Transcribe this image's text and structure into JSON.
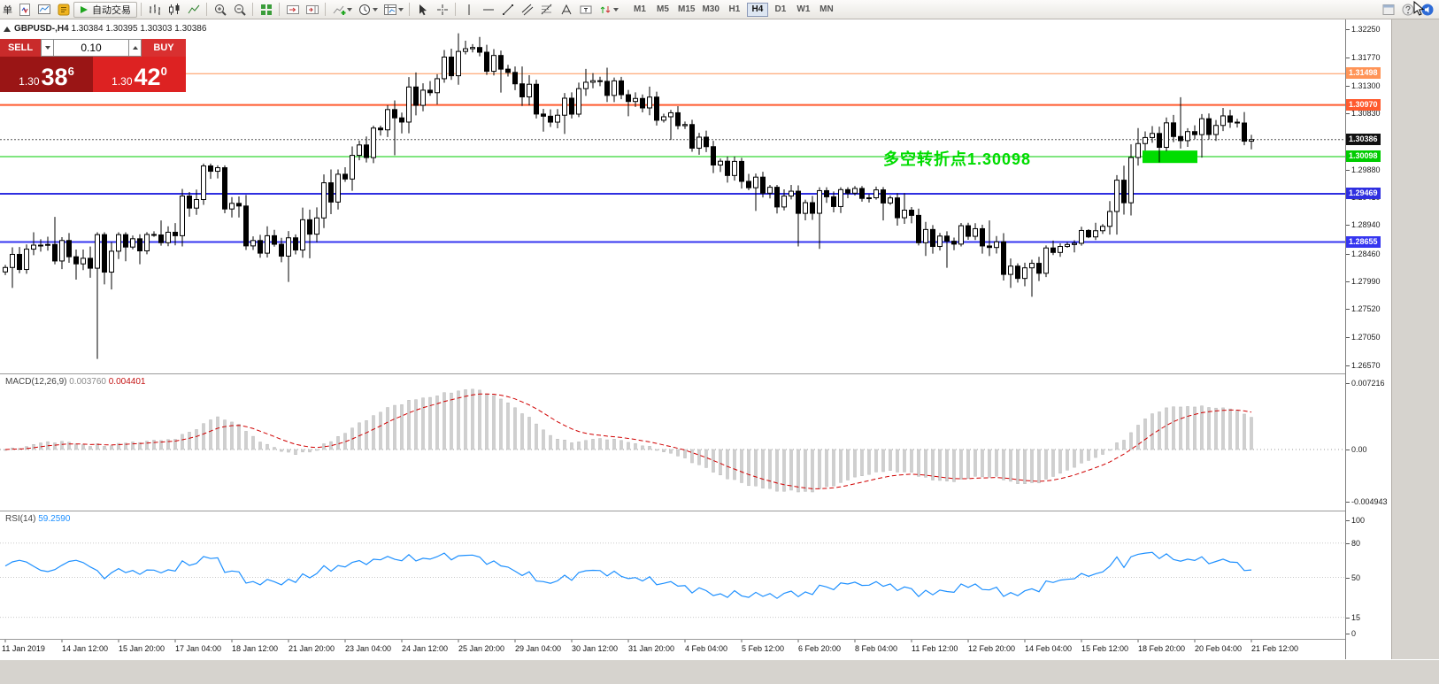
{
  "toolbar": {
    "left_text": "单",
    "autotrading_label": "自动交易",
    "timeframe_buttons": [
      "M1",
      "M5",
      "M15",
      "M30",
      "H1",
      "H4",
      "D1",
      "W1",
      "MN"
    ],
    "active_timeframe": "H4"
  },
  "trade_panel": {
    "sell_label": "SELL",
    "buy_label": "BUY",
    "volume": "0.10",
    "sell_price_main": "1.30",
    "sell_price_big": "38",
    "sell_price_sup": "6",
    "buy_price_main": "1.30",
    "buy_price_big": "42",
    "buy_price_sup": "0"
  },
  "chart_header": {
    "symbol": "GBPUSD-,H4",
    "ohlc": "1.30384 1.30395 1.30303 1.30386"
  },
  "annotation": {
    "text": "多空转折点1.30098",
    "color": "#00dc00"
  },
  "levels": [
    {
      "price": 1.31498,
      "label": "1.31498",
      "color": "#ff9457",
      "width": 1
    },
    {
      "price": 1.3097,
      "label": "1.30970",
      "color": "#ff5a2e",
      "width": 2
    },
    {
      "price": 1.30386,
      "label": "1.30386",
      "color": "#555555",
      "width": 1,
      "dashed": true,
      "badge": "#111111"
    },
    {
      "price": 1.30098,
      "label": "1.30098",
      "color": "#00cc00",
      "width": 1
    },
    {
      "price": 1.29469,
      "label": "1.29469",
      "color": "#2f2fe0",
      "width": 2
    },
    {
      "price": 1.28655,
      "label": "1.28655",
      "color": "#3535f0",
      "width": 2
    }
  ],
  "price_axis": {
    "labels": [
      "1.32250",
      "1.31770",
      "1.31300",
      "1.30830",
      "1.30360",
      "1.29880",
      "1.29410",
      "1.28940",
      "1.28460",
      "1.27990",
      "1.27520",
      "1.27050",
      "1.26570"
    ]
  },
  "time_axis": [
    "11 Jan 2019",
    "14 Jan 12:00",
    "15 Jan 20:00",
    "17 Jan 04:00",
    "18 Jan 12:00",
    "21 Jan 20:00",
    "23 Jan 04:00",
    "24 Jan 12:00",
    "25 Jan 20:00",
    "29 Jan 04:00",
    "30 Jan 12:00",
    "31 Jan 20:00",
    "4 Feb 04:00",
    "5 Feb 12:00",
    "6 Feb 20:00",
    "8 Feb 04:00",
    "11 Feb 12:00",
    "12 Feb 20:00",
    "14 Feb 04:00",
    "15 Feb 12:00",
    "18 Feb 20:00",
    "20 Feb 04:00",
    "21 Feb 12:00"
  ],
  "macd_panel": {
    "label": "MACD(12,26,9)",
    "value1": "0.003760",
    "value2": "0.004401",
    "axis": [
      "0.007216",
      "0.00",
      "-0.004943"
    ],
    "histogram_color": "#cfcfcf",
    "signal_color": "#d00000"
  },
  "rsi_panel": {
    "label": "RSI(14)",
    "value": "59.2590",
    "axis": [
      "100",
      "80",
      "50",
      "15",
      "0"
    ],
    "line_color": "#1e90ff"
  },
  "chart_data": {
    "type": "candlestick",
    "symbol": "GBPUSD-",
    "timeframe": "H4",
    "visible_range": {
      "price_top": 1.3225,
      "price_bottom": 1.2657,
      "first_date": "11 Jan 2019",
      "last_date": "21 Feb 2019"
    },
    "candles_per_day": 6,
    "last_day_candles": 3,
    "days": [
      {
        "date": "11 Jan",
        "o": 1.2815,
        "h": 1.2882,
        "l": 1.2788,
        "c": 1.286
      },
      {
        "date": "14 Jan",
        "o": 1.286,
        "h": 1.2908,
        "l": 1.2802,
        "c": 1.2838
      },
      {
        "date": "15 Jan",
        "o": 1.2838,
        "h": 1.2882,
        "l": 1.2668,
        "c": 1.2857
      },
      {
        "date": "16 Jan",
        "o": 1.2857,
        "h": 1.2902,
        "l": 1.2828,
        "c": 1.2882
      },
      {
        "date": "17 Jan",
        "o": 1.2882,
        "h": 1.2998,
        "l": 1.2858,
        "c": 1.2985
      },
      {
        "date": "18 Jan",
        "o": 1.2985,
        "h": 1.2995,
        "l": 1.2852,
        "c": 1.2868
      },
      {
        "date": "21 Jan",
        "o": 1.2868,
        "h": 1.2892,
        "l": 1.2798,
        "c": 1.2852
      },
      {
        "date": "22 Jan",
        "o": 1.2852,
        "h": 1.2988,
        "l": 1.2838,
        "c": 1.298
      },
      {
        "date": "23 Jan",
        "o": 1.298,
        "h": 1.3062,
        "l": 1.2952,
        "c": 1.3055
      },
      {
        "date": "24 Jan",
        "o": 1.3055,
        "h": 1.3152,
        "l": 1.3012,
        "c": 1.3122
      },
      {
        "date": "25 Jan",
        "o": 1.3122,
        "h": 1.3218,
        "l": 1.3098,
        "c": 1.3192
      },
      {
        "date": "28 Jan",
        "o": 1.3192,
        "h": 1.3212,
        "l": 1.3118,
        "c": 1.3152
      },
      {
        "date": "29 Jan",
        "o": 1.3152,
        "h": 1.3162,
        "l": 1.3052,
        "c": 1.3068
      },
      {
        "date": "30 Jan",
        "o": 1.3068,
        "h": 1.3158,
        "l": 1.3048,
        "c": 1.3138
      },
      {
        "date": "31 Jan",
        "o": 1.3138,
        "h": 1.316,
        "l": 1.3078,
        "c": 1.3108
      },
      {
        "date": "1 Feb",
        "o": 1.3108,
        "h": 1.3128,
        "l": 1.3038,
        "c": 1.3062
      },
      {
        "date": "4 Feb",
        "o": 1.3062,
        "h": 1.3072,
        "l": 1.2982,
        "c": 1.3002
      },
      {
        "date": "5 Feb",
        "o": 1.3002,
        "h": 1.301,
        "l": 1.2918,
        "c": 1.2948
      },
      {
        "date": "6 Feb",
        "o": 1.2948,
        "h": 1.2962,
        "l": 1.2858,
        "c": 1.2932
      },
      {
        "date": "7 Feb",
        "o": 1.2932,
        "h": 1.2958,
        "l": 1.2854,
        "c": 1.2948
      },
      {
        "date": "8 Feb",
        "o": 1.2948,
        "h": 1.296,
        "l": 1.2902,
        "c": 1.294
      },
      {
        "date": "11 Feb",
        "o": 1.294,
        "h": 1.2948,
        "l": 1.2842,
        "c": 1.2858
      },
      {
        "date": "12 Feb",
        "o": 1.2858,
        "h": 1.2898,
        "l": 1.2822,
        "c": 1.2888
      },
      {
        "date": "13 Feb",
        "o": 1.2888,
        "h": 1.2902,
        "l": 1.2788,
        "c": 1.2804
      },
      {
        "date": "14 Feb",
        "o": 1.2804,
        "h": 1.2868,
        "l": 1.2773,
        "c": 1.2858
      },
      {
        "date": "15 Feb",
        "o": 1.2858,
        "h": 1.2898,
        "l": 1.2848,
        "c": 1.2892
      },
      {
        "date": "18 Feb",
        "o": 1.2892,
        "h": 1.3058,
        "l": 1.2878,
        "c": 1.3042
      },
      {
        "date": "19 Feb",
        "o": 1.3042,
        "h": 1.311,
        "l": 1.3,
        "c": 1.3052
      },
      {
        "date": "20 Feb",
        "o": 1.3052,
        "h": 1.3092,
        "l": 1.3008,
        "c": 1.3068
      },
      {
        "date": "21 Feb",
        "o": 1.3068,
        "h": 1.3085,
        "l": 1.3022,
        "c": 1.30386
      }
    ],
    "highlight_box": {
      "x1_candle": 161,
      "x2_candle": 168,
      "price_top": 1.302,
      "price_bottom": 1.2999,
      "color": "#00dd00"
    },
    "indicators": [
      {
        "name": "MACD",
        "params": [
          12,
          26,
          9
        ],
        "values": [
          0.00376,
          0.004401
        ]
      },
      {
        "name": "RSI",
        "params": [
          14
        ],
        "value": 59.259
      }
    ],
    "current_price": 1.30386
  }
}
